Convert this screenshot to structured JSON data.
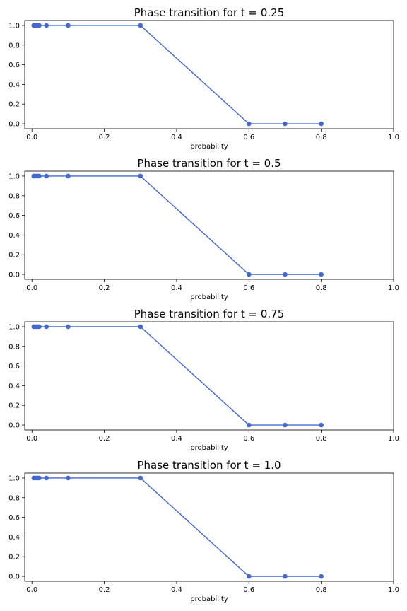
{
  "chart_data": [
    {
      "type": "line",
      "title": "Phase transition for t = 0.25",
      "xlabel": "probability",
      "ylabel": "",
      "x": [
        0.005,
        0.01,
        0.015,
        0.02,
        0.04,
        0.1,
        0.3,
        0.6,
        0.7,
        0.8
      ],
      "series": [
        {
          "values": [
            1,
            1,
            1,
            1,
            1,
            1,
            1,
            0,
            0,
            0
          ]
        }
      ],
      "xlim": [
        -0.02,
        1.0
      ],
      "ylim": [
        -0.05,
        1.05
      ],
      "xticks": [
        "0.0",
        "0.2",
        "0.4",
        "0.6",
        "0.8",
        "1.0"
      ],
      "yticks": [
        "0.0",
        "0.2",
        "0.4",
        "0.6",
        "0.8",
        "1.0"
      ],
      "grid": false,
      "color": "#4169cf"
    },
    {
      "type": "line",
      "title": "Phase transition for t = 0.5",
      "xlabel": "probability",
      "ylabel": "",
      "x": [
        0.005,
        0.01,
        0.015,
        0.02,
        0.04,
        0.1,
        0.3,
        0.6,
        0.7,
        0.8
      ],
      "series": [
        {
          "values": [
            1,
            1,
            1,
            1,
            1,
            1,
            1,
            0,
            0,
            0
          ]
        }
      ],
      "xlim": [
        -0.02,
        1.0
      ],
      "ylim": [
        -0.05,
        1.05
      ],
      "xticks": [
        "0.0",
        "0.2",
        "0.4",
        "0.6",
        "0.8",
        "1.0"
      ],
      "yticks": [
        "0.0",
        "0.2",
        "0.4",
        "0.6",
        "0.8",
        "1.0"
      ],
      "grid": false,
      "color": "#4169cf"
    },
    {
      "type": "line",
      "title": "Phase transition for t = 0.75",
      "xlabel": "probability",
      "ylabel": "",
      "x": [
        0.005,
        0.01,
        0.015,
        0.02,
        0.04,
        0.1,
        0.3,
        0.6,
        0.7,
        0.8
      ],
      "series": [
        {
          "values": [
            1,
            1,
            1,
            1,
            1,
            1,
            1,
            0,
            0,
            0
          ]
        }
      ],
      "xlim": [
        -0.02,
        1.0
      ],
      "ylim": [
        -0.05,
        1.05
      ],
      "xticks": [
        "0.0",
        "0.2",
        "0.4",
        "0.6",
        "0.8",
        "1.0"
      ],
      "yticks": [
        "0.0",
        "0.2",
        "0.4",
        "0.6",
        "0.8",
        "1.0"
      ],
      "grid": false,
      "color": "#4169cf"
    },
    {
      "type": "line",
      "title": "Phase transition for t = 1.0",
      "xlabel": "probability",
      "ylabel": "",
      "x": [
        0.005,
        0.01,
        0.015,
        0.02,
        0.04,
        0.1,
        0.3,
        0.6,
        0.7,
        0.8
      ],
      "series": [
        {
          "values": [
            1,
            1,
            1,
            1,
            1,
            1,
            1,
            0,
            0,
            0
          ]
        }
      ],
      "xlim": [
        -0.02,
        1.0
      ],
      "ylim": [
        -0.05,
        1.05
      ],
      "xticks": [
        "0.0",
        "0.2",
        "0.4",
        "0.6",
        "0.8",
        "1.0"
      ],
      "yticks": [
        "0.0",
        "0.2",
        "0.4",
        "0.6",
        "0.8",
        "1.0"
      ],
      "grid": false,
      "color": "#4169cf"
    }
  ]
}
